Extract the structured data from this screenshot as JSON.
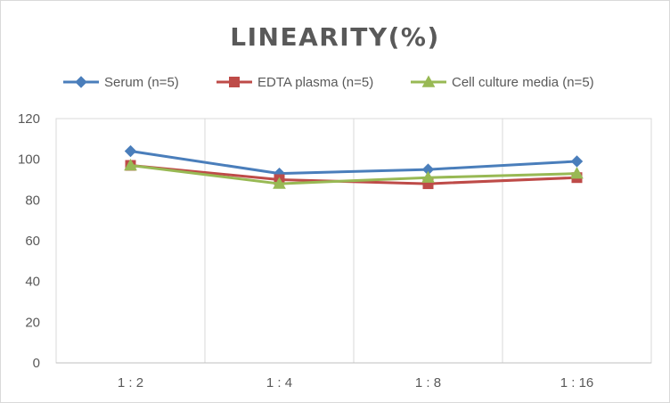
{
  "chart_data": {
    "type": "line",
    "title": "LINEARITY(%)",
    "categories": [
      "1:2",
      "1:4",
      "1:8",
      "1:16"
    ],
    "ylim": [
      0,
      120
    ],
    "yticks": [
      0,
      20,
      40,
      60,
      80,
      100,
      120
    ],
    "grid": "vertical",
    "legend_position": "top",
    "series": [
      {
        "name": "Serum (n=5)",
        "marker": "diamond",
        "color": "#4a7ebb",
        "values": [
          104,
          93,
          95,
          99
        ]
      },
      {
        "name": "EDTA plasma (n=5)",
        "marker": "square",
        "color": "#be4b48",
        "values": [
          97,
          90,
          88,
          91
        ]
      },
      {
        "name": "Cell culture media (n=5)",
        "marker": "triangle",
        "color": "#98b954",
        "values": [
          97,
          88,
          91,
          93
        ]
      }
    ]
  }
}
